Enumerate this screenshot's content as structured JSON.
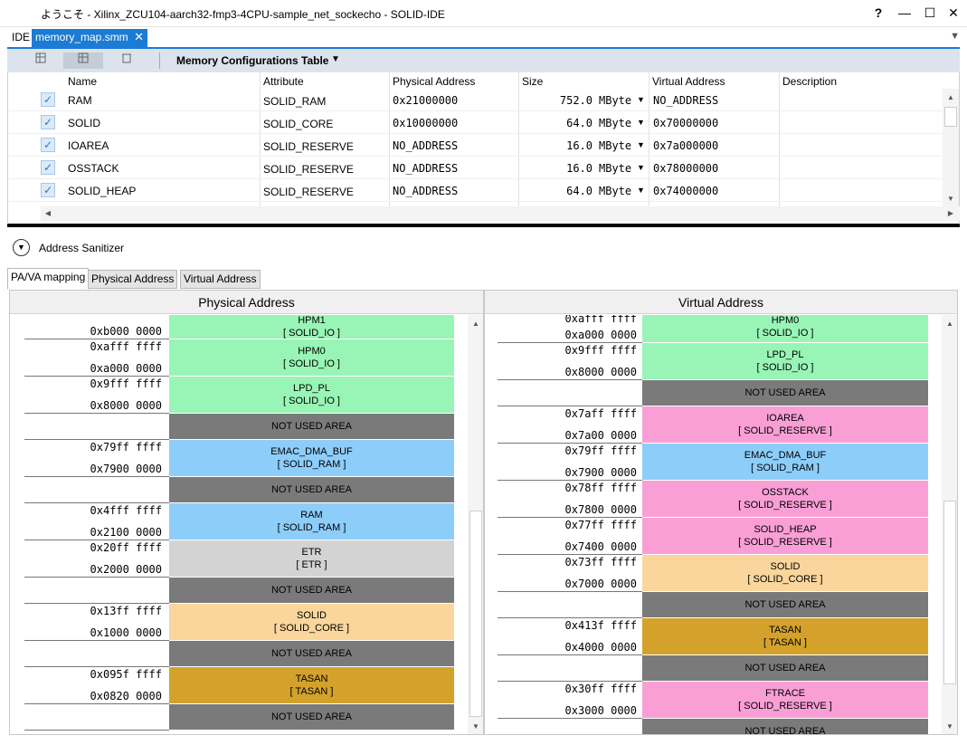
{
  "window": {
    "title": "ようこそ - Xilinx_ZCU104-aarch32-fmp3-4CPU-sample_net_sockecho - SOLID-IDE",
    "help": "?",
    "minimize": "—",
    "maximize": "☐",
    "close": "✕"
  },
  "tabs": {
    "ide": "IDE",
    "editor": "memory_map.smm",
    "close": "✕",
    "view_menu": "▼"
  },
  "toolbar": {
    "title": "Memory Configurations Table",
    "dropdown": "▼"
  },
  "table": {
    "columns": [
      "Name",
      "Attribute",
      "Physical Address",
      "Size",
      "Virtual Address",
      "Description"
    ],
    "rows": [
      {
        "checked": "✓",
        "name": "RAM",
        "attribute": "SOLID_RAM",
        "physical": "0x21000000",
        "size": "752.0",
        "unit": "MByte",
        "virtual": "NO_ADDRESS",
        "description": ""
      },
      {
        "checked": "✓",
        "name": "SOLID",
        "attribute": "SOLID_CORE",
        "physical": "0x10000000",
        "size": "64.0",
        "unit": "MByte",
        "virtual": "0x70000000",
        "description": ""
      },
      {
        "checked": "✓",
        "name": "IOAREA",
        "attribute": "SOLID_RESERVE",
        "physical": "NO_ADDRESS",
        "size": "16.0",
        "unit": "MByte",
        "virtual": "0x7a000000",
        "description": ""
      },
      {
        "checked": "✓",
        "name": "OSSTACK",
        "attribute": "SOLID_RESERVE",
        "physical": "NO_ADDRESS",
        "size": "16.0",
        "unit": "MByte",
        "virtual": "0x78000000",
        "description": ""
      },
      {
        "checked": "✓",
        "name": "SOLID_HEAP",
        "attribute": "SOLID_RESERVE",
        "physical": "NO_ADDRESS",
        "size": "64.0",
        "unit": "MByte",
        "virtual": "0x74000000",
        "description": ""
      }
    ]
  },
  "sanitizer": {
    "label": "Address Sanitizer"
  },
  "subtabs": [
    "PA/VA mapping",
    "Physical Address",
    "Virtual Address"
  ],
  "physical_panel": {
    "title": "Physical Address",
    "blocks": [
      {
        "label": "HPM1",
        "attr": "[ SOLID_IO ]",
        "color": "#98f5b6",
        "end": "",
        "start": "0xb000 0000"
      },
      {
        "label": "HPM0",
        "attr": "[ SOLID_IO ]",
        "color": "#98f5b6",
        "end": "0xafff ffff",
        "start": "0xa000 0000"
      },
      {
        "label": "LPD_PL",
        "attr": "[ SOLID_IO ]",
        "color": "#98f5b6",
        "end": "0x9fff ffff",
        "start": "0x8000 0000"
      },
      {
        "label": "NOT USED AREA",
        "attr": "",
        "color": "#7a7a7a",
        "end": "",
        "start": ""
      },
      {
        "label": "EMAC_DMA_BUF",
        "attr": "[ SOLID_RAM ]",
        "color": "#8dcdfa",
        "end": "0x79ff ffff",
        "start": "0x7900 0000"
      },
      {
        "label": "NOT USED AREA",
        "attr": "",
        "color": "#7a7a7a",
        "end": "",
        "start": ""
      },
      {
        "label": "RAM",
        "attr": "[ SOLID_RAM ]",
        "color": "#8dcdfa",
        "end": "0x4fff ffff",
        "start": "0x2100 0000"
      },
      {
        "label": "ETR",
        "attr": "[ ETR ]",
        "color": "#d3d3d3",
        "end": "0x20ff ffff",
        "start": "0x2000 0000"
      },
      {
        "label": "NOT USED AREA",
        "attr": "",
        "color": "#7a7a7a",
        "end": "",
        "start": ""
      },
      {
        "label": "SOLID",
        "attr": "[ SOLID_CORE ]",
        "color": "#fad69c",
        "end": "0x13ff ffff",
        "start": "0x1000 0000"
      },
      {
        "label": "NOT USED AREA",
        "attr": "",
        "color": "#7a7a7a",
        "end": "",
        "start": ""
      },
      {
        "label": "TASAN",
        "attr": "[ TASAN ]",
        "color": "#d4a22a",
        "end": "0x095f ffff",
        "start": "0x0820 0000"
      },
      {
        "label": "NOT USED AREA",
        "attr": "",
        "color": "#7a7a7a",
        "end": "",
        "start": ""
      }
    ]
  },
  "virtual_panel": {
    "title": "Virtual Address",
    "blocks": [
      {
        "label": "HPM0",
        "attr": "[ SOLID_IO ]",
        "color": "#98f5b6",
        "end": "0xafff ffff",
        "start": "0xa000 0000"
      },
      {
        "label": "LPD_PL",
        "attr": "[ SOLID_IO ]",
        "color": "#98f5b6",
        "end": "0x9fff ffff",
        "start": "0x8000 0000"
      },
      {
        "label": "NOT USED AREA",
        "attr": "",
        "color": "#7a7a7a",
        "end": "",
        "start": ""
      },
      {
        "label": "IOAREA",
        "attr": "[ SOLID_RESERVE ]",
        "color": "#f99fd6",
        "end": "0x7aff ffff",
        "start": "0x7a00 0000"
      },
      {
        "label": "EMAC_DMA_BUF",
        "attr": "[ SOLID_RAM ]",
        "color": "#8dcdfa",
        "end": "0x79ff ffff",
        "start": "0x7900 0000"
      },
      {
        "label": "OSSTACK",
        "attr": "[ SOLID_RESERVE ]",
        "color": "#f99fd6",
        "end": "0x78ff ffff",
        "start": "0x7800 0000"
      },
      {
        "label": "SOLID_HEAP",
        "attr": "[ SOLID_RESERVE ]",
        "color": "#f99fd6",
        "end": "0x77ff ffff",
        "start": "0x7400 0000"
      },
      {
        "label": "SOLID",
        "attr": "[ SOLID_CORE ]",
        "color": "#fad69c",
        "end": "0x73ff ffff",
        "start": "0x7000 0000"
      },
      {
        "label": "NOT USED AREA",
        "attr": "",
        "color": "#7a7a7a",
        "end": "",
        "start": ""
      },
      {
        "label": "TASAN",
        "attr": "[ TASAN ]",
        "color": "#d4a22a",
        "end": "0x413f ffff",
        "start": "0x4000 0000"
      },
      {
        "label": "NOT USED AREA",
        "attr": "",
        "color": "#7a7a7a",
        "end": "",
        "start": ""
      },
      {
        "label": "FTRACE",
        "attr": "[ SOLID_RESERVE ]",
        "color": "#f99fd6",
        "end": "0x30ff ffff",
        "start": "0x3000 0000"
      },
      {
        "label": "NOT USED AREA",
        "attr": "",
        "color": "#7a7a7a",
        "end": "",
        "start": ""
      }
    ]
  }
}
